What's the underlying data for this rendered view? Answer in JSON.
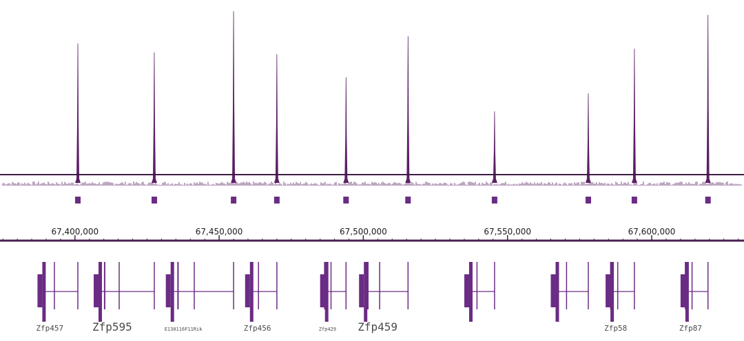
{
  "chart_data": {
    "type": "area",
    "x_unit": "bp",
    "xlim": [
      67374000,
      67632000
    ],
    "ylim": [
      0,
      100
    ],
    "grid": false,
    "legend": "none",
    "colors": {
      "signal": "#5c1f66",
      "feature": "#6a2c84",
      "axis": "#4a1f52",
      "baseline": "#3d1a45"
    },
    "peaks": [
      {
        "position": 67401000,
        "height": 78
      },
      {
        "position": 67427500,
        "height": 73
      },
      {
        "position": 67455000,
        "height": 96
      },
      {
        "position": 67470000,
        "height": 72
      },
      {
        "position": 67494000,
        "height": 59
      },
      {
        "position": 67515500,
        "height": 82
      },
      {
        "position": 67545500,
        "height": 40
      },
      {
        "position": 67578000,
        "height": 50
      },
      {
        "position": 67594000,
        "height": 75
      },
      {
        "position": 67619500,
        "height": 94
      }
    ],
    "called_regions": [
      67401000,
      67427500,
      67455000,
      67470000,
      67494000,
      67515500,
      67545500,
      67578000,
      67594000,
      67619500
    ],
    "x_ticks": [
      {
        "value": 67400000,
        "label": "67,400,000"
      },
      {
        "value": 67450000,
        "label": "67,450,000"
      },
      {
        "value": 67500000,
        "label": "67,500,000"
      },
      {
        "value": 67550000,
        "label": "67,550,000"
      },
      {
        "value": 67600000,
        "label": "67,600,000"
      }
    ],
    "genes": [
      {
        "name": "Zfp457",
        "start": 67387000,
        "end": 67401000,
        "label_size": "small"
      },
      {
        "name": "Zfp595",
        "start": 67406500,
        "end": 67427500,
        "label_size": "large"
      },
      {
        "name": "E130116F11Rik",
        "start": 67431500,
        "end": 67455000,
        "label_size": "tiny"
      },
      {
        "name": "Zfp456",
        "start": 67459000,
        "end": 67470000,
        "label_size": "small"
      },
      {
        "name": "Zfp429",
        "start": 67485000,
        "end": 67494000,
        "label_size": "tiny"
      },
      {
        "name": "Zfp459",
        "start": 67498500,
        "end": 67515500,
        "label_size": "large"
      },
      {
        "name": "",
        "start": 67535000,
        "end": 67545500,
        "label_size": "small"
      },
      {
        "name": "",
        "start": 67565000,
        "end": 67578000,
        "label_size": "small"
      },
      {
        "name": "Zfp58",
        "start": 67584000,
        "end": 67594000,
        "label_size": "small"
      },
      {
        "name": "Zfp87",
        "start": 67610000,
        "end": 67619500,
        "label_size": "small"
      }
    ]
  }
}
